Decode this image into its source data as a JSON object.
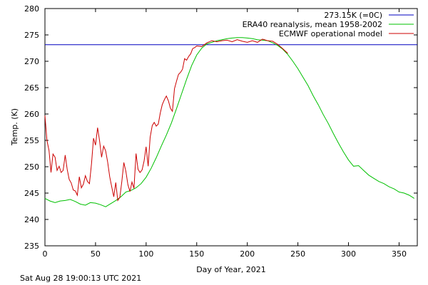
{
  "chart_data": {
    "type": "line",
    "title": "",
    "xlabel": "Day of Year, 2021",
    "ylabel": "Temp. (K)",
    "xlim": [
      0,
      368
    ],
    "ylim": [
      235,
      280
    ],
    "xticks": [
      0,
      50,
      100,
      150,
      200,
      250,
      300,
      350
    ],
    "yticks": [
      235,
      240,
      245,
      250,
      255,
      260,
      265,
      270,
      275,
      280
    ],
    "legend_position": "top-right",
    "series": [
      {
        "name": "273.15K (=0C)",
        "color": "#0000c0",
        "x": [
          0,
          368
        ],
        "y": [
          273.15,
          273.15
        ]
      },
      {
        "name": "ERA40 reanalysis, mean 1958-2002",
        "color": "#00c000",
        "x": [
          0,
          5,
          10,
          15,
          20,
          25,
          30,
          35,
          40,
          45,
          50,
          55,
          60,
          65,
          70,
          75,
          80,
          85,
          90,
          95,
          100,
          105,
          110,
          115,
          120,
          125,
          130,
          135,
          140,
          145,
          150,
          155,
          160,
          165,
          170,
          175,
          180,
          185,
          190,
          195,
          200,
          205,
          210,
          215,
          220,
          225,
          230,
          235,
          240,
          245,
          250,
          255,
          260,
          265,
          270,
          275,
          280,
          285,
          290,
          295,
          300,
          305,
          310,
          315,
          320,
          325,
          330,
          335,
          340,
          345,
          350,
          355,
          360,
          365
        ],
        "y": [
          244.0,
          243.5,
          243.2,
          243.5,
          243.6,
          243.8,
          243.4,
          242.9,
          242.7,
          243.2,
          243.1,
          242.8,
          242.4,
          243.0,
          243.6,
          244.3,
          245.2,
          245.5,
          246.0,
          246.8,
          248.0,
          249.7,
          251.7,
          253.9,
          256.0,
          258.3,
          261.0,
          263.8,
          266.6,
          269.2,
          271.2,
          272.5,
          273.3,
          273.6,
          273.9,
          274.1,
          274.3,
          274.4,
          274.5,
          274.5,
          274.4,
          274.3,
          274.1,
          274.0,
          273.9,
          273.5,
          273.0,
          272.3,
          271.3,
          270.0,
          268.6,
          267.0,
          265.4,
          263.5,
          261.8,
          259.9,
          258.2,
          256.3,
          254.5,
          252.8,
          251.3,
          250.1,
          250.2,
          249.3,
          248.4,
          247.8,
          247.2,
          246.8,
          246.2,
          245.8,
          245.2,
          245.0,
          244.6,
          244.0
        ]
      },
      {
        "name": "ECMWF operational model",
        "color": "#cc0000",
        "x": [
          0,
          2,
          4,
          6,
          8,
          10,
          12,
          14,
          16,
          18,
          20,
          22,
          24,
          26,
          28,
          30,
          32,
          34,
          36,
          38,
          40,
          42,
          44,
          46,
          48,
          50,
          52,
          54,
          56,
          58,
          60,
          62,
          64,
          66,
          68,
          70,
          72,
          74,
          76,
          78,
          80,
          82,
          84,
          86,
          88,
          90,
          92,
          94,
          96,
          98,
          100,
          102,
          104,
          106,
          108,
          110,
          112,
          114,
          116,
          118,
          120,
          122,
          124,
          126,
          128,
          130,
          132,
          134,
          136,
          138,
          140,
          142,
          144,
          146,
          148,
          150,
          155,
          160,
          165,
          170,
          175,
          180,
          185,
          190,
          195,
          200,
          205,
          210,
          215,
          220,
          225,
          230,
          235,
          240
        ],
        "y": [
          259.7,
          255.0,
          253.1,
          248.9,
          252.4,
          251.8,
          249.3,
          250.1,
          248.9,
          249.3,
          252.2,
          249.5,
          247.6,
          246.9,
          245.6,
          245.4,
          244.6,
          248.1,
          246.0,
          246.7,
          248.3,
          247.2,
          246.8,
          250.6,
          255.4,
          254.1,
          257.4,
          254.9,
          251.8,
          253.9,
          253.0,
          250.9,
          248.1,
          246.2,
          244.3,
          247.0,
          243.6,
          244.2,
          247.2,
          250.8,
          249.1,
          246.6,
          245.3,
          247.1,
          245.9,
          252.5,
          249.5,
          248.9,
          249.4,
          251.1,
          253.8,
          250.1,
          255.6,
          257.8,
          258.4,
          257.7,
          258.1,
          260.2,
          261.8,
          262.7,
          263.4,
          262.5,
          261.1,
          260.5,
          264.8,
          266.2,
          267.5,
          267.9,
          268.5,
          270.5,
          270.2,
          270.9,
          271.4,
          272.4,
          272.6,
          272.9,
          272.8,
          273.5,
          273.9,
          273.7,
          273.9,
          274.0,
          273.7,
          274.1,
          273.8,
          273.6,
          273.9,
          273.6,
          274.2,
          273.9,
          273.8,
          273.2,
          272.4,
          271.5
        ]
      }
    ]
  },
  "footer": {
    "timestamp": "Sat Aug 28 19:00:13 UTC 2021"
  }
}
